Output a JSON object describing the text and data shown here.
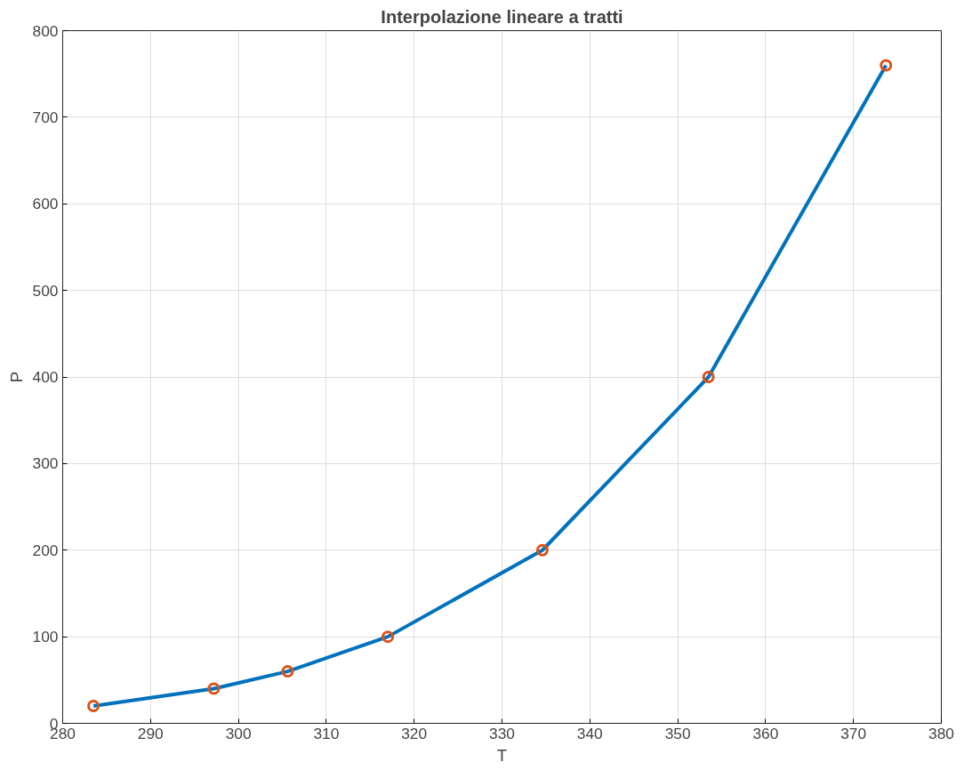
{
  "chart_data": {
    "type": "line",
    "title": "Interpolazione lineare a tratti",
    "xlabel": "T",
    "ylabel": "P",
    "x": [
      283.5,
      297.2,
      305.6,
      317.0,
      334.6,
      353.5,
      373.7
    ],
    "series": [
      {
        "color": "#0072bd",
        "values": [
          20,
          40,
          60,
          100,
          200,
          400,
          760
        ]
      },
      {
        "type": "scatter",
        "marker": "circle",
        "color": "#d95319",
        "values": [
          20,
          40,
          60,
          100,
          200,
          400,
          760
        ]
      }
    ],
    "xlim": [
      280,
      380
    ],
    "xticks": [
      280,
      290,
      300,
      310,
      320,
      330,
      340,
      350,
      360,
      370,
      380
    ],
    "ylim": [
      0,
      800
    ],
    "yticks": [
      0,
      100,
      200,
      300,
      400,
      500,
      600,
      700,
      800
    ],
    "grid": true
  }
}
